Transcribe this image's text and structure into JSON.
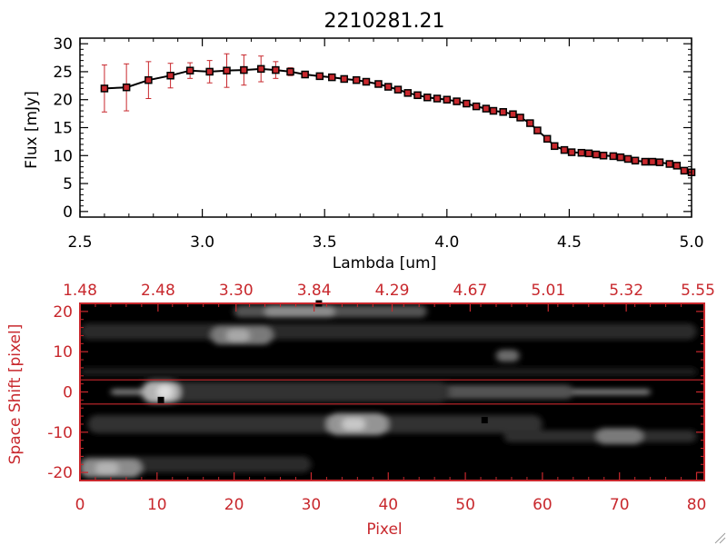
{
  "chart_data": [
    {
      "type": "line",
      "title": "2210281.21",
      "xlabel": "Lambda [um]",
      "ylabel": "Flux [mJy]",
      "xlim": [
        2.5,
        5.0
      ],
      "ylim": [
        -1,
        31
      ],
      "xticks": [
        "2.5",
        "3.0",
        "3.5",
        "4.0",
        "4.5",
        "5.0"
      ],
      "yticks": [
        "0",
        "5",
        "10",
        "15",
        "20",
        "25",
        "30"
      ],
      "colors": {
        "line": "#000000",
        "marker": "#c8282d",
        "marker_edge": "#000000",
        "errorbar": "#c8282d"
      },
      "series": [
        {
          "x": [
            2.6,
            2.69,
            2.78,
            2.87,
            2.95,
            3.03,
            3.1,
            3.17,
            3.24,
            3.3,
            3.36,
            3.42,
            3.48,
            3.53,
            3.58,
            3.63,
            3.67,
            3.72,
            3.76,
            3.8,
            3.84,
            3.88,
            3.92,
            3.96,
            4.0,
            4.04,
            4.08,
            4.12,
            4.16,
            4.19,
            4.23,
            4.27,
            4.3,
            4.34,
            4.37,
            4.41,
            4.44,
            4.48,
            4.51,
            4.55,
            4.58,
            4.61,
            4.64,
            4.68,
            4.71,
            4.74,
            4.77,
            4.81,
            4.84,
            4.87,
            4.91,
            4.94,
            4.97,
            5.0
          ],
          "y": [
            22.0,
            22.2,
            23.5,
            24.3,
            25.2,
            25.0,
            25.2,
            25.3,
            25.5,
            25.3,
            25.0,
            24.5,
            24.2,
            24.0,
            23.7,
            23.5,
            23.2,
            22.8,
            22.3,
            21.8,
            21.2,
            20.8,
            20.4,
            20.2,
            20.0,
            19.7,
            19.3,
            18.8,
            18.4,
            18.0,
            17.8,
            17.4,
            16.8,
            15.8,
            14.5,
            13.0,
            11.7,
            11.0,
            10.6,
            10.5,
            10.4,
            10.2,
            10.0,
            9.9,
            9.7,
            9.4,
            9.1,
            8.9,
            8.9,
            8.8,
            8.5,
            8.2,
            7.3,
            7.0
          ],
          "err": [
            4.2,
            4.2,
            3.3,
            2.2,
            1.4,
            2.0,
            3.0,
            2.7,
            2.3,
            1.5,
            0.7,
            0.6,
            0.5,
            0.5,
            0.5,
            0.5,
            0.5,
            0.5,
            0.5,
            0.5,
            0.5,
            0.5,
            0.5,
            0.5,
            0.5,
            0.5,
            0.5,
            0.5,
            0.5,
            0.5,
            0.5,
            0.5,
            0.5,
            0.5,
            0.5,
            0.5,
            0.5,
            0.5,
            0.5,
            0.5,
            0.5,
            0.5,
            0.5,
            0.5,
            0.5,
            0.5,
            0.5,
            0.5,
            0.5,
            0.5,
            0.5,
            0.5,
            0.5,
            0.5
          ]
        }
      ]
    },
    {
      "type": "heatmap",
      "xlabel": "Pixel",
      "ylabel": "Space Shift [pixel]",
      "xlim": [
        0,
        81
      ],
      "ylim": [
        -22,
        22
      ],
      "xticks": [
        "0",
        "10",
        "20",
        "30",
        "40",
        "50",
        "60",
        "70",
        "80"
      ],
      "yticks": [
        "-20",
        "-10",
        "0",
        "10",
        "20"
      ],
      "top_axis_ticks": [
        "1.48",
        "2.48",
        "3.30",
        "3.84",
        "4.29",
        "4.67",
        "5.01",
        "5.32",
        "5.55"
      ],
      "colormap": "grayscale",
      "colors": {
        "axes": "#c8282d",
        "background": "#000000"
      },
      "extraction_window": [
        -3,
        3
      ],
      "source_markers": [
        {
          "x": 10.5,
          "y": -2
        },
        {
          "x": 52.5,
          "y": -7
        },
        {
          "x": 31,
          "y": 22
        }
      ],
      "features": [
        {
          "x0": 4,
          "x1": 74,
          "y": 0,
          "h": 1.5,
          "level": 0.48
        },
        {
          "x0": 9,
          "x1": 64,
          "y": 0,
          "h": 3.5,
          "level": 0.32
        },
        {
          "x0": 8,
          "x1": 48,
          "y": 0,
          "h": 5.0,
          "level": 0.2
        },
        {
          "x0": 8,
          "x1": 13,
          "y": 0,
          "h": 5.5,
          "level": 0.7
        },
        {
          "x0": 10,
          "x1": 12,
          "y": 0,
          "h": 3.5,
          "level": 0.88
        },
        {
          "x0": 1,
          "x1": 60,
          "y": -8,
          "h": 4.5,
          "level": 0.2
        },
        {
          "x0": 32,
          "x1": 40,
          "y": -8,
          "h": 5.5,
          "level": 0.58
        },
        {
          "x0": 34,
          "x1": 37,
          "y": -8,
          "h": 3.0,
          "level": 0.78
        },
        {
          "x0": 55,
          "x1": 80,
          "y": -11,
          "h": 3.0,
          "level": 0.18
        },
        {
          "x0": 67,
          "x1": 73,
          "y": -11,
          "h": 4.0,
          "level": 0.48
        },
        {
          "x0": 0,
          "x1": 30,
          "y": -18,
          "h": 4.0,
          "level": 0.16
        },
        {
          "x0": 0,
          "x1": 8,
          "y": -19,
          "h": 4.5,
          "level": 0.55
        },
        {
          "x0": 2,
          "x1": 5,
          "y": -19,
          "h": 3.0,
          "level": 0.7
        },
        {
          "x0": 0,
          "x1": 80,
          "y": 15,
          "h": 4.0,
          "level": 0.16
        },
        {
          "x0": 17,
          "x1": 25,
          "y": 14,
          "h": 4.5,
          "level": 0.48
        },
        {
          "x0": 19,
          "x1": 22,
          "y": 14,
          "h": 3.0,
          "level": 0.66
        },
        {
          "x0": 20,
          "x1": 45,
          "y": 20,
          "h": 3.0,
          "level": 0.32
        },
        {
          "x0": 24,
          "x1": 33,
          "y": 20,
          "h": 3.0,
          "level": 0.55
        },
        {
          "x0": 54,
          "x1": 57,
          "y": 9,
          "h": 3.0,
          "level": 0.42
        },
        {
          "x0": 0,
          "x1": 80,
          "y": 5,
          "h": 2.0,
          "level": 0.12
        }
      ]
    }
  ]
}
